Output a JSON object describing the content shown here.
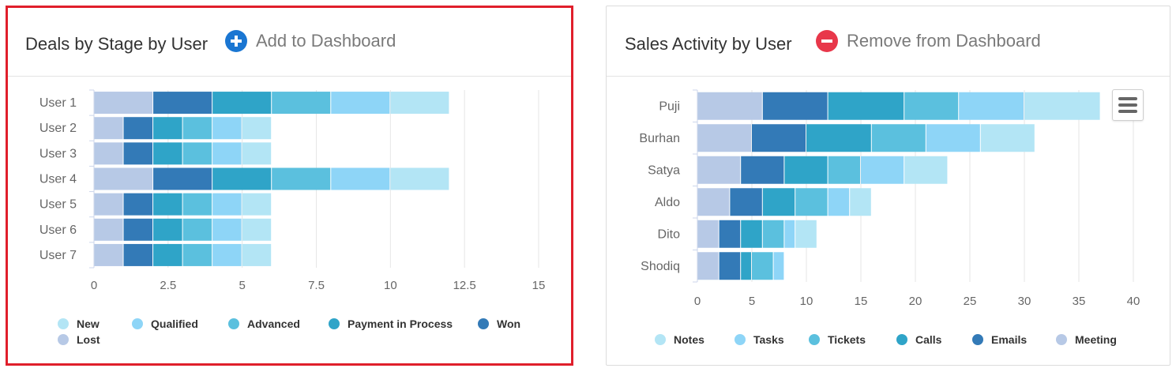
{
  "left_panel": {
    "title": "Deals by Stage by User",
    "action_label": "Add to Dashboard",
    "action_color": "#1a76d2"
  },
  "right_panel": {
    "title": "Sales Activity by User",
    "action_label": "Remove from Dashboard",
    "action_color": "#e8374a",
    "menu_icon": "hamburger-menu-icon"
  },
  "chart_data": [
    {
      "type": "bar",
      "orientation": "horizontal",
      "stacked": true,
      "categories": [
        "User 1",
        "User 2",
        "User 3",
        "User 4",
        "User 5",
        "User 6",
        "User 7"
      ],
      "series": [
        {
          "name": "Lost",
          "color": "#b7c9e6",
          "values": [
            2,
            1,
            1,
            2,
            1,
            1,
            1
          ]
        },
        {
          "name": "Won",
          "color": "#337ab7",
          "values": [
            2,
            1,
            1,
            2,
            1,
            1,
            1
          ]
        },
        {
          "name": "Payment in Process",
          "color": "#2fa4c8",
          "values": [
            2,
            1,
            1,
            2,
            1,
            1,
            1
          ]
        },
        {
          "name": "Advanced",
          "color": "#5bc0de",
          "values": [
            2,
            1,
            1,
            2,
            1,
            1,
            1
          ]
        },
        {
          "name": "Qualified",
          "color": "#8ed5f7",
          "values": [
            2,
            1,
            1,
            2,
            1,
            1,
            1
          ]
        },
        {
          "name": "New",
          "color": "#b3e5f5",
          "values": [
            2,
            1,
            1,
            2,
            1,
            1,
            1
          ]
        }
      ],
      "legend_order": [
        "New",
        "Qualified",
        "Advanced",
        "Payment in Process",
        "Won",
        "Lost"
      ],
      "xlim": [
        0,
        15
      ],
      "x_ticks": [
        "0",
        "2.5",
        "5",
        "7.5",
        "10",
        "12.5",
        "15"
      ],
      "grid": true,
      "legend_position": "bottom"
    },
    {
      "type": "bar",
      "orientation": "horizontal",
      "stacked": true,
      "categories": [
        "Puji",
        "Burhan",
        "Satya",
        "Aldo",
        "Dito",
        "Shodiq"
      ],
      "series": [
        {
          "name": "Meeting",
          "color": "#b7c9e6",
          "values": [
            6,
            5,
            4,
            3,
            2,
            2
          ]
        },
        {
          "name": "Emails",
          "color": "#337ab7",
          "values": [
            6,
            5,
            4,
            3,
            2,
            2
          ]
        },
        {
          "name": "Calls",
          "color": "#2fa4c8",
          "values": [
            7,
            6,
            4,
            3,
            2,
            1
          ]
        },
        {
          "name": "Tickets",
          "color": "#5bc0de",
          "values": [
            5,
            5,
            3,
            3,
            2,
            2
          ]
        },
        {
          "name": "Tasks",
          "color": "#8ed5f7",
          "values": [
            6,
            5,
            4,
            2,
            1,
            1
          ]
        },
        {
          "name": "Notes",
          "color": "#b3e5f5",
          "values": [
            7,
            5,
            4,
            2,
            2,
            0
          ]
        }
      ],
      "legend_order": [
        "Notes",
        "Tasks",
        "Tickets",
        "Calls",
        "Emails",
        "Meeting"
      ],
      "xlim": [
        0,
        40
      ],
      "x_ticks": [
        "0",
        "5",
        "10",
        "15",
        "20",
        "25",
        "30",
        "35",
        "40"
      ],
      "grid": true,
      "legend_position": "bottom"
    }
  ]
}
